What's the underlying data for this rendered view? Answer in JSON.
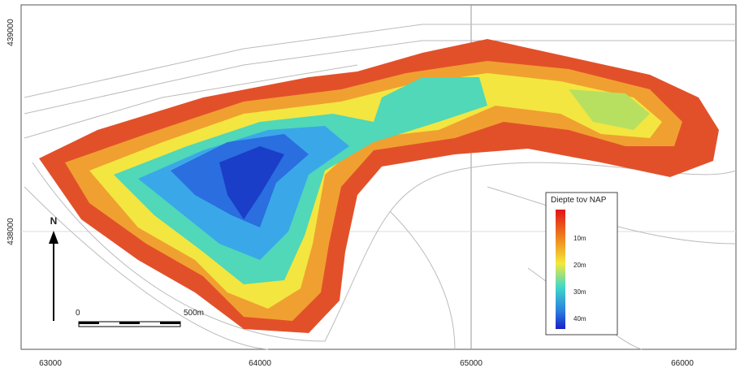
{
  "map": {
    "x_labels": [
      63000,
      64000,
      65000,
      66000
    ],
    "y_labels": [
      439000,
      438000
    ],
    "legend": {
      "title": "Diepte tov NAP",
      "labels": [
        "10m",
        "20m",
        "30m",
        "40m"
      ]
    },
    "north": "N",
    "scale": {
      "start": "0",
      "end": "500m"
    }
  }
}
